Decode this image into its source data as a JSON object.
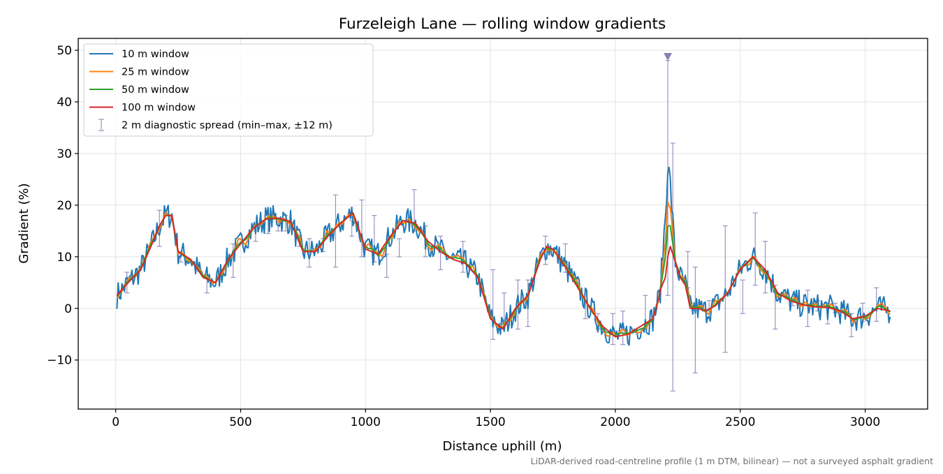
{
  "chart_data": {
    "type": "line",
    "title": "Furzeleigh Lane — rolling window gradients",
    "xlabel": "Distance uphill (m)",
    "ylabel": "Gradient (%)",
    "xlim": [
      -150,
      3250
    ],
    "ylim": [
      -19.5,
      52.3
    ],
    "xticks": [
      0,
      500,
      1000,
      1500,
      2000,
      2500,
      3000
    ],
    "xtick_labels": [
      "0",
      "500",
      "1000",
      "1500",
      "2000",
      "2500",
      "3000"
    ],
    "yticks": [
      -10,
      0,
      10,
      20,
      30,
      40,
      50
    ],
    "ytick_labels": [
      "−10",
      "0",
      "10",
      "20",
      "30",
      "40",
      "50"
    ],
    "grid": true,
    "legend_position": "top-left",
    "profile": {
      "x": [
        5,
        50,
        100,
        150,
        175,
        200,
        225,
        250,
        300,
        350,
        400,
        450,
        500,
        550,
        600,
        650,
        700,
        750,
        800,
        850,
        900,
        950,
        1000,
        1050,
        1100,
        1150,
        1200,
        1250,
        1300,
        1350,
        1400,
        1450,
        1500,
        1550,
        1600,
        1650,
        1700,
        1725,
        1750,
        1800,
        1850,
        1900,
        1950,
        2000,
        2050,
        2100,
        2150,
        2175,
        2200,
        2210,
        2220,
        2240,
        2260,
        2280,
        2300,
        2330,
        2360,
        2400,
        2450,
        2500,
        2550,
        2600,
        2650,
        2700,
        2750,
        2800,
        2850,
        2900,
        2950,
        3000,
        3050,
        3100
      ],
      "y": [
        2.5,
        5,
        7.5,
        13,
        16,
        18,
        18,
        11,
        9.5,
        6,
        5,
        9.5,
        12.5,
        15.5,
        17.3,
        17.5,
        16.8,
        11,
        11,
        14,
        16.5,
        18.5,
        11.5,
        10.5,
        14,
        17,
        16.5,
        13,
        11,
        9.5,
        8.7,
        6,
        -2,
        -4,
        0,
        2.5,
        9.5,
        12,
        11.5,
        8,
        4,
        0,
        -3.5,
        -5.5,
        -5,
        -3.5,
        -2,
        2,
        10,
        16,
        16,
        9,
        6,
        4.5,
        0,
        0,
        -0.5,
        0.5,
        3,
        7.5,
        10,
        7.5,
        3,
        1.5,
        0.7,
        0.3,
        0.2,
        -0.5,
        -2,
        -1.5,
        0,
        -0.5
      ]
    },
    "series": [
      {
        "name": "10 m window",
        "color": "#1f77b4",
        "noise": 1.3,
        "smooth": 1,
        "spike": 12
      },
      {
        "name": "25 m window",
        "color": "#ff7f0e",
        "noise": 0.9,
        "smooth": 2,
        "spike": 5
      },
      {
        "name": "50 m window",
        "color": "#2ca02c",
        "noise": 0.6,
        "smooth": 4,
        "spike": 0
      },
      {
        "name": "100 m window",
        "color": "#d62728",
        "noise": 0.0,
        "smooth": 10,
        "spike": -6
      }
    ],
    "errorbars": {
      "name": "2 m diagnostic spread (min–max, ±12 m)",
      "color": "#9a93c1",
      "x": [
        45,
        175,
        260,
        365,
        470,
        560,
        610,
        650,
        680,
        735,
        775,
        830,
        880,
        945,
        985,
        1035,
        1085,
        1135,
        1195,
        1240,
        1300,
        1390,
        1510,
        1555,
        1610,
        1650,
        1720,
        1800,
        1880,
        1930,
        1990,
        2030,
        2120,
        2210,
        2230,
        2290,
        2320,
        2375,
        2440,
        2510,
        2560,
        2600,
        2640,
        2710,
        2770,
        2810,
        2850,
        2880,
        2945,
        2990,
        3045
      ],
      "lo": [
        3,
        12,
        9,
        3,
        6,
        13,
        14.5,
        15,
        15,
        12,
        8,
        11,
        8,
        14,
        10,
        9,
        6,
        10,
        15,
        10,
        7.5,
        7,
        -6,
        -3,
        -4,
        -3.5,
        8.5,
        7,
        -2,
        -4,
        -7,
        -7,
        -4,
        2.5,
        -16,
        4,
        -12.5,
        -2,
        -8.5,
        -1,
        4.5,
        3,
        -4,
        0.5,
        -3.5,
        -0.5,
        -3,
        -0.8,
        -5.5,
        -2.5,
        -2.5
      ],
      "hi": [
        7,
        19,
        11,
        6.5,
        12.5,
        15,
        17.5,
        17.5,
        18,
        14,
        13.5,
        13.5,
        22,
        17,
        21,
        18,
        10.5,
        13.5,
        23,
        16,
        14,
        13,
        7.5,
        3,
        5.5,
        5.5,
        14,
        12.5,
        1.5,
        -1,
        -1,
        -0.5,
        2.5,
        48,
        32,
        11,
        8,
        1.5,
        16,
        5.5,
        18.5,
        13,
        4.5,
        1.5,
        3.5,
        1.5,
        1,
        1,
        -1,
        1,
        4
      ]
    },
    "marker": {
      "x": 2210,
      "y": 48.8,
      "color": "#8c7fb5"
    },
    "footnote": "LiDAR-derived road-centreline profile (1 m DTM, bilinear) — not a surveyed asphalt gradient"
  }
}
